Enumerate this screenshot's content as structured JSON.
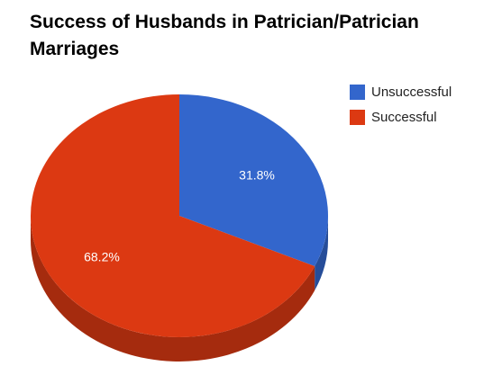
{
  "chart_data": {
    "type": "pie",
    "title": "Success of Husbands in Patrician/Patrician Marriages",
    "slices": [
      {
        "label": "Unsuccessful",
        "value": 31.8,
        "value_label": "31.8%",
        "color": "#3366cc",
        "side_color": "#264d99"
      },
      {
        "label": "Successful",
        "value": 68.2,
        "value_label": "68.2%",
        "color": "#dc3912",
        "side_color": "#a52b0e"
      }
    ],
    "legend_position": "right",
    "style": "3d"
  }
}
